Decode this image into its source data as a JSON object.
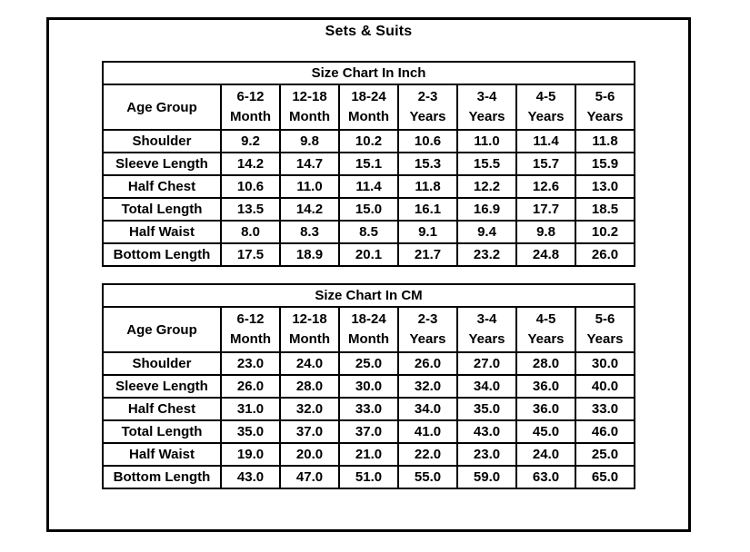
{
  "page": {
    "title": "Sets & Suits"
  },
  "colors": {
    "text": "#000000",
    "background": "#ffffff",
    "border": "#000000"
  },
  "chart_data": [
    {
      "type": "table",
      "title": "Size Chart In Inch",
      "corner_label": "Age Group",
      "columns": [
        {
          "line1": "6-12",
          "line2": "Month"
        },
        {
          "line1": "12-18",
          "line2": "Month"
        },
        {
          "line1": "18-24",
          "line2": "Month"
        },
        {
          "line1": "2-3",
          "line2": "Years"
        },
        {
          "line1": "3-4",
          "line2": "Years"
        },
        {
          "line1": "4-5",
          "line2": "Years"
        },
        {
          "line1": "5-6",
          "line2": "Years"
        }
      ],
      "rows": [
        {
          "label": "Shoulder",
          "values": [
            "9.2",
            "9.8",
            "10.2",
            "10.6",
            "11.0",
            "11.4",
            "11.8"
          ]
        },
        {
          "label": "Sleeve Length",
          "values": [
            "14.2",
            "14.7",
            "15.1",
            "15.3",
            "15.5",
            "15.7",
            "15.9"
          ]
        },
        {
          "label": "Half Chest",
          "values": [
            "10.6",
            "11.0",
            "11.4",
            "11.8",
            "12.2",
            "12.6",
            "13.0"
          ]
        },
        {
          "label": "Total Length",
          "values": [
            "13.5",
            "14.2",
            "15.0",
            "16.1",
            "16.9",
            "17.7",
            "18.5"
          ]
        },
        {
          "label": "Half Waist",
          "values": [
            "8.0",
            "8.3",
            "8.5",
            "9.1",
            "9.4",
            "9.8",
            "10.2"
          ]
        },
        {
          "label": "Bottom Length",
          "values": [
            "17.5",
            "18.9",
            "20.1",
            "21.7",
            "23.2",
            "24.8",
            "26.0"
          ]
        }
      ]
    },
    {
      "type": "table",
      "title": "Size Chart In CM",
      "corner_label": "Age Group",
      "columns": [
        {
          "line1": "6-12",
          "line2": "Month"
        },
        {
          "line1": "12-18",
          "line2": "Month"
        },
        {
          "line1": "18-24",
          "line2": "Month"
        },
        {
          "line1": "2-3",
          "line2": "Years"
        },
        {
          "line1": "3-4",
          "line2": "Years"
        },
        {
          "line1": "4-5",
          "line2": "Years"
        },
        {
          "line1": "5-6",
          "line2": "Years"
        }
      ],
      "rows": [
        {
          "label": "Shoulder",
          "values": [
            "23.0",
            "24.0",
            "25.0",
            "26.0",
            "27.0",
            "28.0",
            "30.0"
          ]
        },
        {
          "label": "Sleeve Length",
          "values": [
            "26.0",
            "28.0",
            "30.0",
            "32.0",
            "34.0",
            "36.0",
            "40.0"
          ]
        },
        {
          "label": "Half Chest",
          "values": [
            "31.0",
            "32.0",
            "33.0",
            "34.0",
            "35.0",
            "36.0",
            "33.0"
          ]
        },
        {
          "label": "Total Length",
          "values": [
            "35.0",
            "37.0",
            "37.0",
            "41.0",
            "43.0",
            "45.0",
            "46.0"
          ]
        },
        {
          "label": "Half Waist",
          "values": [
            "19.0",
            "20.0",
            "21.0",
            "22.0",
            "23.0",
            "24.0",
            "25.0"
          ]
        },
        {
          "label": "Bottom Length",
          "values": [
            "43.0",
            "47.0",
            "51.0",
            "55.0",
            "59.0",
            "63.0",
            "65.0"
          ]
        }
      ]
    }
  ]
}
